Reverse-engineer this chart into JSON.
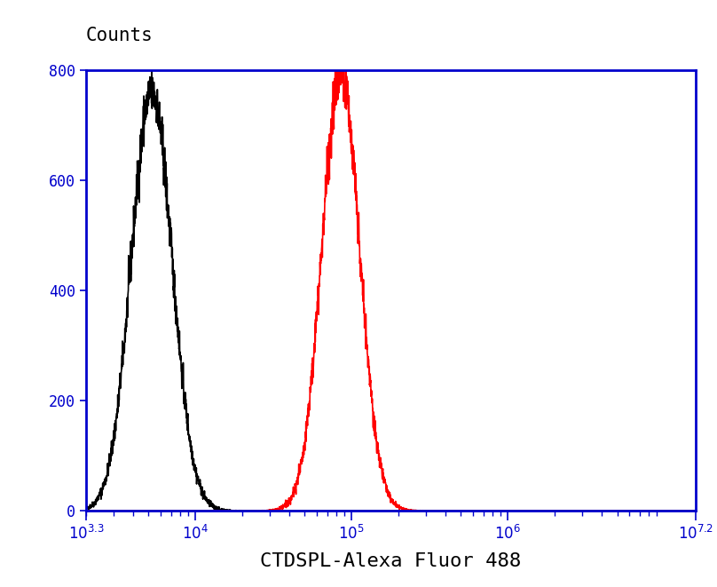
{
  "ylabel": "Counts",
  "xlabel": "CTDSPL-Alexa Fluor 488",
  "xlim_log": [
    3.3,
    7.2
  ],
  "ylim": [
    0,
    800
  ],
  "yticks": [
    0,
    200,
    400,
    600,
    800
  ],
  "black_peak_log": 3.72,
  "black_peak_height": 760,
  "black_sigma_log": 0.13,
  "red_peak_log": 4.93,
  "red_peak_height": 800,
  "red_sigma_log": 0.12,
  "black_color": "#000000",
  "red_color": "#ff0000",
  "border_color": "#0000cc",
  "background_color": "#ffffff",
  "plot_bg_color": "#f5f5f5",
  "text_color": "#000000",
  "tick_color": "#0000cc",
  "xlabel_color": "#0000aa",
  "ylabel_fontsize": 15,
  "xlabel_fontsize": 16,
  "tick_fontsize": 12,
  "linewidth": 1.2,
  "noise_amplitude": 8,
  "noise_seed": 42
}
